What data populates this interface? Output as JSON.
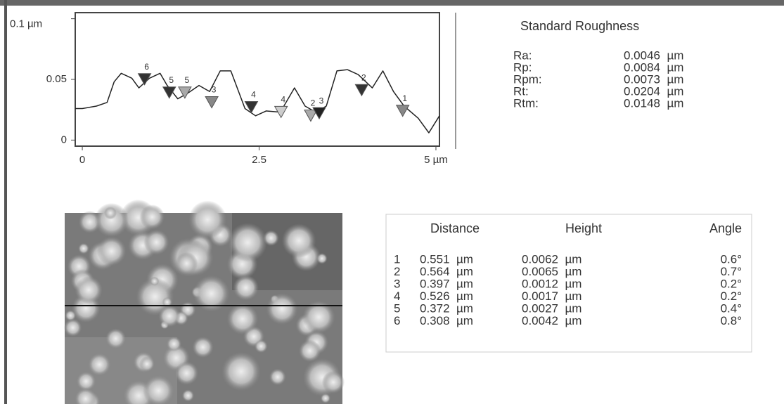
{
  "profile": {
    "type": "line",
    "x": [
      -0.1,
      0.0,
      0.2,
      0.35,
      0.45,
      0.55,
      0.7,
      0.8,
      0.95,
      1.1,
      1.2,
      1.35,
      1.5,
      1.65,
      1.8,
      1.95,
      2.1,
      2.3,
      2.45,
      2.6,
      2.8,
      3.0,
      3.15,
      3.3,
      3.45,
      3.6,
      3.75,
      3.9,
      4.1,
      4.25,
      4.4,
      4.55,
      4.75,
      4.9,
      5.05
    ],
    "values": [
      0.026,
      0.026,
      0.028,
      0.031,
      0.048,
      0.055,
      0.051,
      0.043,
      0.051,
      0.055,
      0.045,
      0.034,
      0.039,
      0.045,
      0.04,
      0.057,
      0.057,
      0.026,
      0.02,
      0.024,
      0.023,
      0.043,
      0.028,
      0.023,
      0.028,
      0.057,
      0.058,
      0.054,
      0.043,
      0.057,
      0.04,
      0.028,
      0.018,
      0.006,
      0.02
    ],
    "color": "#222222",
    "xlim": [
      -0.1,
      5.05
    ],
    "ylim": [
      -0.005,
      0.105
    ],
    "xticks": [
      0,
      2.5,
      {
        "value": 5,
        "label": "5 µm"
      }
    ],
    "yticks": [
      0,
      0.05,
      {
        "value": 0.1,
        "label": "0.1 µm"
      }
    ],
    "markers": [
      {
        "label": "6",
        "x": 0.88,
        "y": 0.049,
        "color": "#333333"
      },
      {
        "label": "5",
        "x": 1.23,
        "y": 0.038,
        "color": "#333333"
      },
      {
        "label": "5",
        "x": 1.45,
        "y": 0.038,
        "color": "#aaaaaa"
      },
      {
        "label": "3",
        "x": 1.83,
        "y": 0.03,
        "color": "#888888"
      },
      {
        "label": "4",
        "x": 2.39,
        "y": 0.026,
        "color": "#333333"
      },
      {
        "label": "4",
        "x": 2.81,
        "y": 0.022,
        "color": "#cccccc"
      },
      {
        "label": "2",
        "x": 3.23,
        "y": 0.019,
        "color": "#aaaaaa"
      },
      {
        "label": "3",
        "x": 3.35,
        "y": 0.021,
        "color": "#222222"
      },
      {
        "label": "2",
        "x": 3.95,
        "y": 0.04,
        "color": "#333333"
      },
      {
        "label": "1",
        "x": 4.53,
        "y": 0.023,
        "color": "#888888"
      }
    ]
  },
  "roughness": {
    "title": "Standard Roughness",
    "rows": [
      [
        "Ra:",
        "0.0046  µm"
      ],
      [
        "Rp:",
        "0.0084  µm"
      ],
      [
        "Rpm:",
        "0.0073  µm"
      ],
      [
        "Rt:",
        "0.0204  µm"
      ],
      [
        "Rtm:",
        "0.0148  µm"
      ]
    ]
  },
  "measurements": {
    "header": [
      "Distance",
      "Height",
      "Angle"
    ],
    "rows": [
      [
        "1",
        "0.551  µm",
        "0.0062  µm",
        "0.6°"
      ],
      [
        "2",
        "0.564  µm",
        "0.0065  µm",
        "0.7°"
      ],
      [
        "3",
        "0.397  µm",
        "0.0012  µm",
        "0.2°"
      ],
      [
        "4",
        "0.526  µm",
        "0.0017  µm",
        "0.2°"
      ],
      [
        "5",
        "0.372  µm",
        "0.0027  µm",
        "0.4°"
      ],
      [
        "6",
        "0.308  µm",
        "0.0042  µm",
        "0.8°"
      ]
    ]
  }
}
